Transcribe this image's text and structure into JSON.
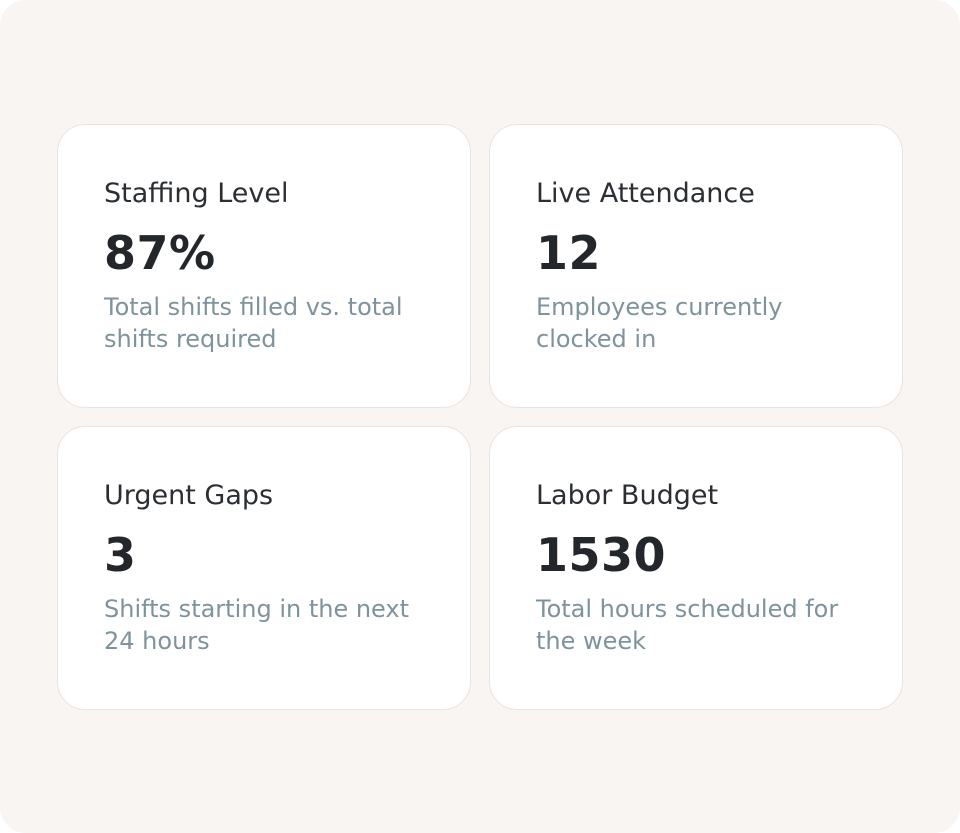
{
  "cards": [
    {
      "title": "Staffing Level",
      "value": "87%",
      "description": "Total shifts filled vs. total shifts required"
    },
    {
      "title": "Live Attendance",
      "value": "12",
      "description": "Employees currently clocked in"
    },
    {
      "title": "Urgent Gaps",
      "value": "3",
      "description": "Shifts starting in the next 24 hours"
    },
    {
      "title": "Labor Budget",
      "value": "1530",
      "description": "Total hours scheduled for the week"
    }
  ]
}
